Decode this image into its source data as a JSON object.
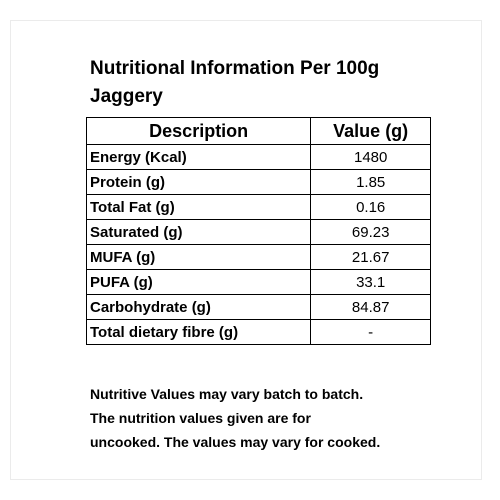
{
  "title": {
    "line1": "Nutritional Information Per 100g",
    "line2": "Jaggery"
  },
  "table": {
    "headers": [
      "Description",
      "Value (g)"
    ],
    "rows": [
      {
        "description": "Energy (Kcal)",
        "value": "1480"
      },
      {
        "description": "Protein (g)",
        "value": "1.85"
      },
      {
        "description": "Total Fat (g)",
        "value": "0.16"
      },
      {
        "description": "Saturated (g)",
        "value": "69.23"
      },
      {
        "description": "MUFA (g)",
        "value": "21.67"
      },
      {
        "description": "PUFA (g)",
        "value": "33.1"
      },
      {
        "description": "Carbohydrate (g)",
        "value": "84.87"
      },
      {
        "description": "Total dietary fibre (g)",
        "value": "-"
      }
    ]
  },
  "note": {
    "lines": [
      "Nutritive Values may vary batch to batch.",
      "The nutrition values given are for",
      "uncooked. The values may vary for cooked."
    ]
  }
}
